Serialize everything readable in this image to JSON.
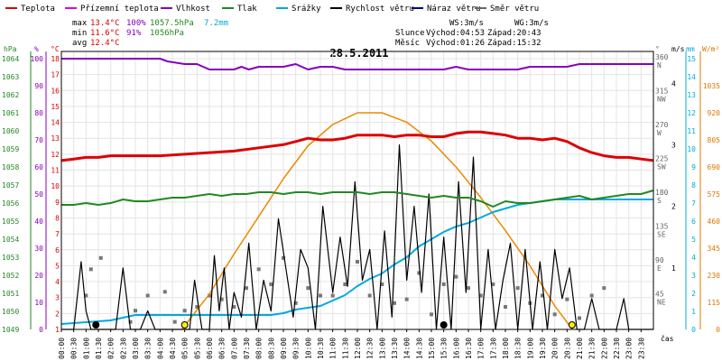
{
  "title": "28.5.2011",
  "legend": [
    {
      "name": "Teplota",
      "color": "#dd0000"
    },
    {
      "name": "Přízemní teplota",
      "color": "#dd00dd"
    },
    {
      "name": "Vlhkost",
      "color": "#8800bb"
    },
    {
      "name": "Tlak",
      "color": "#228822"
    },
    {
      "name": "Srážky",
      "color": "#00aadd"
    },
    {
      "name": "Rychlost větru",
      "color": "#000000"
    },
    {
      "name": "Náraz větru",
      "color": "#000088"
    },
    {
      "name": "Směr větru",
      "color": "#666666"
    }
  ],
  "stats": {
    "max_label": "max",
    "max_temp": "13.4°C",
    "max_hum": "100%",
    "max_press": "1057.5hPa",
    "max_rain": "7.2mm",
    "min_label": "min",
    "min_temp": "11.6°C",
    "min_hum": "91%",
    "min_press": "1056hPa",
    "avg_label": "avg",
    "avg_temp": "12.4°C"
  },
  "wind_info": {
    "ws": "WS:3m/s",
    "wg": "WG:3m/s"
  },
  "sun": {
    "label": "Slunce",
    "rise": "Východ:04:53",
    "set": "Západ:20:43"
  },
  "moon": {
    "label": "Měsíc",
    "rise": "Východ:01:26",
    "set": "Západ:15:32"
  },
  "axis_units": {
    "hpa": "hPa",
    "pct": "%",
    "degc": "°C",
    "deg": "°",
    "ms": "m/s",
    "mm": "mm",
    "wm2": "W/m²",
    "time": "čas"
  },
  "chart_data": {
    "type": "line",
    "x_ticks": [
      "00:00",
      "00:30",
      "01:00",
      "01:30",
      "02:00",
      "02:30",
      "03:00",
      "03:30",
      "04:00",
      "04:30",
      "05:00",
      "05:30",
      "06:00",
      "06:30",
      "07:00",
      "07:30",
      "08:00",
      "08:30",
      "09:00",
      "09:30",
      "10:00",
      "10:30",
      "11:00",
      "11:30",
      "12:00",
      "12:30",
      "13:00",
      "13:30",
      "14:00",
      "14:30",
      "15:00",
      "15:30",
      "16:00",
      "16:30",
      "17:00",
      "17:30",
      "18:00",
      "18:30",
      "19:00",
      "19:30",
      "20:00",
      "20:30",
      "21:00",
      "21:30",
      "22:00",
      "22:30",
      "23:00",
      "23:30"
    ],
    "hpa_ticks": [
      "1049",
      "1050",
      "1051",
      "1052",
      "1053",
      "1054",
      "1055",
      "1056",
      "1057",
      "1058",
      "1059",
      "1060",
      "1061",
      "1062",
      "1063",
      "1064"
    ],
    "pct_ticks": [
      "0",
      "10",
      "20",
      "30",
      "40",
      "50",
      "60",
      "70",
      "80",
      "90",
      "100"
    ],
    "temp_ticks": [
      "1",
      "2",
      "3",
      "4",
      "5",
      "6",
      "7",
      "8",
      "9",
      "10",
      "11",
      "12",
      "13",
      "14",
      "15",
      "16",
      "17",
      "18"
    ],
    "dir_ticks": [
      {
        "deg": "45",
        "lbl": "NE"
      },
      {
        "deg": "90",
        "lbl": "E"
      },
      {
        "deg": "135",
        "lbl": "SE"
      },
      {
        "deg": "180",
        "lbl": "S"
      },
      {
        "deg": "225",
        "lbl": "SW"
      },
      {
        "deg": "270",
        "lbl": "W"
      },
      {
        "deg": "315",
        "lbl": "NW"
      },
      {
        "deg": "360",
        "lbl": "N"
      }
    ],
    "ms_ticks": [
      "1",
      "2",
      "3",
      "4"
    ],
    "mm_ticks": [
      "0",
      "1",
      "2",
      "3",
      "4",
      "5",
      "6",
      "7",
      "8",
      "9",
      "10",
      "11",
      "12",
      "13",
      "14",
      "15"
    ],
    "wm2_ticks": [
      "0",
      "115",
      "230",
      "345",
      "460",
      "575",
      "690",
      "805",
      "920",
      "1035"
    ],
    "temperature": [
      [
        0,
        11.6
      ],
      [
        0.5,
        11.7
      ],
      [
        1,
        11.8
      ],
      [
        1.5,
        11.8
      ],
      [
        2,
        11.9
      ],
      [
        3,
        11.9
      ],
      [
        4,
        11.9
      ],
      [
        5,
        12.0
      ],
      [
        6,
        12.1
      ],
      [
        7,
        12.2
      ],
      [
        8,
        12.4
      ],
      [
        9,
        12.6
      ],
      [
        9.5,
        12.8
      ],
      [
        10,
        13.0
      ],
      [
        10.5,
        12.9
      ],
      [
        11,
        12.9
      ],
      [
        11.5,
        13.0
      ],
      [
        12,
        13.2
      ],
      [
        12.5,
        13.2
      ],
      [
        13,
        13.2
      ],
      [
        13.5,
        13.1
      ],
      [
        14,
        13.2
      ],
      [
        14.5,
        13.2
      ],
      [
        15,
        13.1
      ],
      [
        15.5,
        13.1
      ],
      [
        16,
        13.3
      ],
      [
        16.5,
        13.4
      ],
      [
        17,
        13.4
      ],
      [
        17.5,
        13.3
      ],
      [
        18,
        13.2
      ],
      [
        18.5,
        13.0
      ],
      [
        19,
        13.0
      ],
      [
        19.5,
        12.9
      ],
      [
        20,
        13.0
      ],
      [
        20.5,
        12.8
      ],
      [
        21,
        12.4
      ],
      [
        21.5,
        12.1
      ],
      [
        22,
        11.9
      ],
      [
        22.5,
        11.8
      ],
      [
        23,
        11.8
      ],
      [
        23.5,
        11.7
      ],
      [
        24,
        11.6
      ]
    ],
    "humidity": [
      [
        0,
        100
      ],
      [
        0.5,
        100
      ],
      [
        1,
        100
      ],
      [
        2,
        100
      ],
      [
        3,
        100
      ],
      [
        4,
        100
      ],
      [
        4.3,
        99
      ],
      [
        5,
        98
      ],
      [
        5.5,
        98
      ],
      [
        6,
        96
      ],
      [
        6.5,
        96
      ],
      [
        7,
        96
      ],
      [
        7.3,
        97
      ],
      [
        7.6,
        96
      ],
      [
        8,
        97
      ],
      [
        8.3,
        97
      ],
      [
        9,
        97
      ],
      [
        9.5,
        98
      ],
      [
        10,
        96
      ],
      [
        10.5,
        97
      ],
      [
        11,
        97
      ],
      [
        11.5,
        96
      ],
      [
        12,
        96
      ],
      [
        12.5,
        96
      ],
      [
        13,
        96
      ],
      [
        13.5,
        96
      ],
      [
        14,
        96
      ],
      [
        14.5,
        96
      ],
      [
        15,
        96
      ],
      [
        15.5,
        96
      ],
      [
        16,
        97
      ],
      [
        16.5,
        96
      ],
      [
        17,
        96
      ],
      [
        17.5,
        96
      ],
      [
        18,
        96
      ],
      [
        18.5,
        96
      ],
      [
        19,
        97
      ],
      [
        19.5,
        97
      ],
      [
        20,
        97
      ],
      [
        20.5,
        97
      ],
      [
        21,
        98
      ],
      [
        22,
        98
      ],
      [
        23,
        98
      ],
      [
        24,
        98
      ]
    ],
    "pressure": [
      [
        0,
        1055.9
      ],
      [
        0.5,
        1055.9
      ],
      [
        1,
        1056.0
      ],
      [
        1.5,
        1055.9
      ],
      [
        2,
        1056.0
      ],
      [
        2.5,
        1056.2
      ],
      [
        3,
        1056.1
      ],
      [
        3.5,
        1056.1
      ],
      [
        4,
        1056.2
      ],
      [
        4.5,
        1056.3
      ],
      [
        5,
        1056.3
      ],
      [
        5.5,
        1056.4
      ],
      [
        6,
        1056.5
      ],
      [
        6.5,
        1056.4
      ],
      [
        7,
        1056.5
      ],
      [
        7.5,
        1056.5
      ],
      [
        8,
        1056.6
      ],
      [
        8.5,
        1056.6
      ],
      [
        9,
        1056.5
      ],
      [
        9.5,
        1056.6
      ],
      [
        10,
        1056.6
      ],
      [
        10.5,
        1056.5
      ],
      [
        11,
        1056.6
      ],
      [
        11.5,
        1056.6
      ],
      [
        12,
        1056.6
      ],
      [
        12.5,
        1056.5
      ],
      [
        13,
        1056.6
      ],
      [
        13.5,
        1056.6
      ],
      [
        14,
        1056.5
      ],
      [
        14.5,
        1056.4
      ],
      [
        15,
        1056.3
      ],
      [
        15.5,
        1056.4
      ],
      [
        16,
        1056.3
      ],
      [
        16.5,
        1056.3
      ],
      [
        17,
        1056.1
      ],
      [
        17.5,
        1055.8
      ],
      [
        18,
        1056.1
      ],
      [
        18.5,
        1056.0
      ],
      [
        19,
        1056.0
      ],
      [
        19.5,
        1056.1
      ],
      [
        20,
        1056.2
      ],
      [
        20.5,
        1056.3
      ],
      [
        21,
        1056.4
      ],
      [
        21.5,
        1056.2
      ],
      [
        22,
        1056.3
      ],
      [
        22.5,
        1056.4
      ],
      [
        23,
        1056.5
      ],
      [
        23.5,
        1056.5
      ],
      [
        24,
        1056.7
      ]
    ],
    "rain_total_mm": [
      [
        0,
        0.3
      ],
      [
        1,
        0.4
      ],
      [
        2,
        0.5
      ],
      [
        3,
        0.8
      ],
      [
        4,
        0.8
      ],
      [
        5,
        0.8
      ],
      [
        6,
        0.8
      ],
      [
        7,
        0.8
      ],
      [
        8,
        0.8
      ],
      [
        8.5,
        0.8
      ],
      [
        9,
        0.9
      ],
      [
        9.5,
        1.1
      ],
      [
        10,
        1.2
      ],
      [
        10.5,
        1.3
      ],
      [
        11,
        1.6
      ],
      [
        11.5,
        1.9
      ],
      [
        12,
        2.4
      ],
      [
        12.5,
        2.8
      ],
      [
        13,
        3.1
      ],
      [
        13.5,
        3.6
      ],
      [
        14,
        4.0
      ],
      [
        14.5,
        4.6
      ],
      [
        15,
        5.0
      ],
      [
        15.5,
        5.4
      ],
      [
        16,
        5.7
      ],
      [
        16.5,
        5.9
      ],
      [
        17,
        6.2
      ],
      [
        17.5,
        6.5
      ],
      [
        18,
        6.7
      ],
      [
        18.5,
        6.9
      ],
      [
        19,
        7.0
      ],
      [
        19.5,
        7.1
      ],
      [
        20,
        7.2
      ],
      [
        21,
        7.2
      ],
      [
        22,
        7.2
      ],
      [
        23,
        7.2
      ],
      [
        24,
        7.2
      ]
    ],
    "wind_speed_ms": [
      [
        0,
        0
      ],
      [
        0.5,
        0
      ],
      [
        0.8,
        1.1
      ],
      [
        1,
        0.3
      ],
      [
        1.2,
        0
      ],
      [
        1.6,
        0
      ],
      [
        1.8,
        0
      ],
      [
        2.2,
        0
      ],
      [
        2.5,
        1.0
      ],
      [
        2.8,
        0
      ],
      [
        3.2,
        0
      ],
      [
        3.5,
        0.3
      ],
      [
        3.8,
        0
      ],
      [
        4.2,
        0
      ],
      [
        4.5,
        0
      ],
      [
        5.2,
        0
      ],
      [
        5.4,
        0.8
      ],
      [
        5.7,
        0
      ],
      [
        6.0,
        0
      ],
      [
        6.2,
        1.2
      ],
      [
        6.4,
        0.3
      ],
      [
        6.6,
        1.0
      ],
      [
        6.8,
        0
      ],
      [
        7.0,
        0.6
      ],
      [
        7.3,
        0.2
      ],
      [
        7.6,
        1.4
      ],
      [
        7.9,
        0
      ],
      [
        8.2,
        0.8
      ],
      [
        8.5,
        0.3
      ],
      [
        8.8,
        1.8
      ],
      [
        9.1,
        1.0
      ],
      [
        9.4,
        0.2
      ],
      [
        9.7,
        1.3
      ],
      [
        10.0,
        1.0
      ],
      [
        10.3,
        0
      ],
      [
        10.6,
        2.0
      ],
      [
        11.0,
        0.6
      ],
      [
        11.3,
        1.5
      ],
      [
        11.6,
        0.7
      ],
      [
        11.9,
        2.4
      ],
      [
        12.2,
        0.8
      ],
      [
        12.5,
        1.3
      ],
      [
        12.8,
        0
      ],
      [
        13.1,
        1.6
      ],
      [
        13.4,
        0.2
      ],
      [
        13.7,
        3.0
      ],
      [
        14.0,
        0.8
      ],
      [
        14.3,
        2.0
      ],
      [
        14.6,
        0.6
      ],
      [
        14.9,
        2.2
      ],
      [
        15.2,
        0
      ],
      [
        15.5,
        1.5
      ],
      [
        15.8,
        0
      ],
      [
        16.1,
        2.4
      ],
      [
        16.4,
        0.6
      ],
      [
        16.7,
        2.8
      ],
      [
        17.0,
        0
      ],
      [
        17.3,
        1.3
      ],
      [
        17.6,
        0
      ],
      [
        17.9,
        0.8
      ],
      [
        18.2,
        1.4
      ],
      [
        18.5,
        0
      ],
      [
        18.8,
        1.3
      ],
      [
        19.1,
        0
      ],
      [
        19.4,
        1.1
      ],
      [
        19.7,
        0
      ],
      [
        20.0,
        1.3
      ],
      [
        20.3,
        0.5
      ],
      [
        20.6,
        1.0
      ],
      [
        20.9,
        0
      ],
      [
        21.2,
        0
      ],
      [
        21.5,
        0.5
      ],
      [
        21.8,
        0
      ],
      [
        22.5,
        0
      ],
      [
        22.8,
        0.5
      ],
      [
        23.0,
        0
      ],
      [
        24,
        0
      ]
    ],
    "wind_dir_deg": [
      [
        1.0,
        45
      ],
      [
        1.2,
        80
      ],
      [
        1.6,
        95
      ],
      [
        2.8,
        10
      ],
      [
        3.0,
        25
      ],
      [
        3.5,
        45
      ],
      [
        4.2,
        50
      ],
      [
        4.6,
        10
      ],
      [
        5.0,
        25
      ],
      [
        5.5,
        30
      ],
      [
        6.0,
        45
      ],
      [
        6.5,
        40
      ],
      [
        7.0,
        30
      ],
      [
        7.5,
        55
      ],
      [
        8.0,
        80
      ],
      [
        8.5,
        60
      ],
      [
        9.0,
        95
      ],
      [
        9.5,
        35
      ],
      [
        10.0,
        55
      ],
      [
        10.5,
        45
      ],
      [
        11.0,
        45
      ],
      [
        11.5,
        60
      ],
      [
        12.0,
        90
      ],
      [
        12.5,
        45
      ],
      [
        13.0,
        60
      ],
      [
        13.5,
        35
      ],
      [
        14.0,
        40
      ],
      [
        14.5,
        75
      ],
      [
        15.0,
        20
      ],
      [
        15.5,
        60
      ],
      [
        16.0,
        70
      ],
      [
        16.5,
        55
      ],
      [
        17.0,
        45
      ],
      [
        17.5,
        60
      ],
      [
        18.0,
        30
      ],
      [
        18.5,
        55
      ],
      [
        19.0,
        35
      ],
      [
        19.5,
        45
      ],
      [
        20.0,
        20
      ],
      [
        20.5,
        40
      ],
      [
        21.0,
        15
      ],
      [
        21.5,
        45
      ],
      [
        22.0,
        55
      ]
    ],
    "solar_wm2": [
      [
        4.88,
        0
      ],
      [
        6,
        150
      ],
      [
        7,
        320
      ],
      [
        8,
        480
      ],
      [
        9,
        640
      ],
      [
        10,
        780
      ],
      [
        11,
        870
      ],
      [
        12,
        920
      ],
      [
        13,
        920
      ],
      [
        14,
        880
      ],
      [
        15,
        800
      ],
      [
        16,
        690
      ],
      [
        17,
        560
      ],
      [
        18,
        420
      ],
      [
        19,
        270
      ],
      [
        20,
        100
      ],
      [
        20.72,
        0
      ]
    ],
    "sun_markers": [
      {
        "x": 5.0
      },
      {
        "x": 20.7
      }
    ],
    "moon_markers": [
      {
        "x": 1.4
      },
      {
        "x": 15.5
      }
    ]
  }
}
